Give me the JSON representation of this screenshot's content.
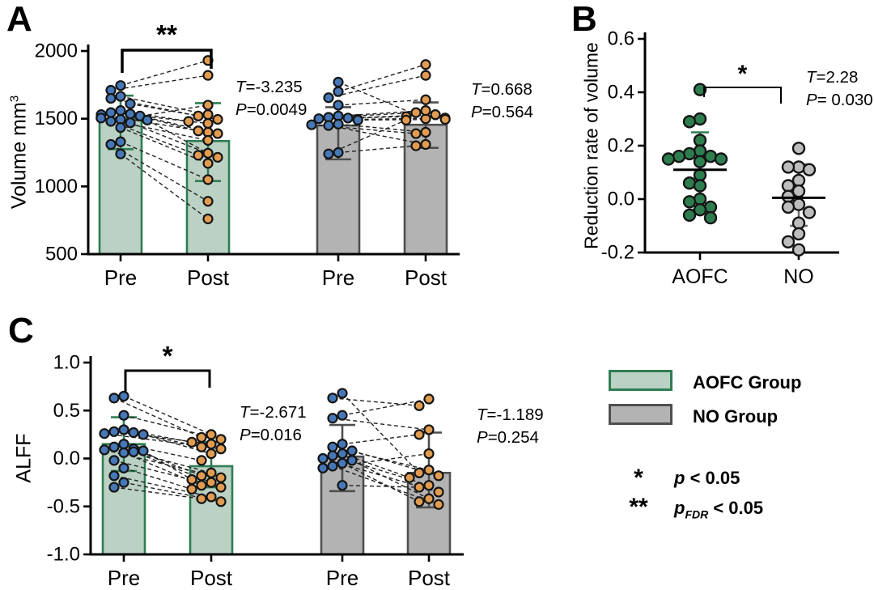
{
  "figure": {
    "panels": [
      {
        "letter": "A"
      },
      {
        "letter": "B"
      },
      {
        "letter": "C"
      }
    ]
  },
  "colors": {
    "pre_dot": "#4678b8",
    "post_dot": "#e29c51",
    "dot_stroke": "#151515",
    "aofc_fill": "#bad1c4",
    "aofc_stroke": "#2e7d53",
    "no_fill": "#b3b3b3",
    "no_stroke": "#4f4f4f",
    "aofc_scatter_dot": "#2e7d4e",
    "no_scatter_dot": "#bdbdbd",
    "no_err": "#6e6e6e",
    "black": "#000000"
  },
  "chart_data": [
    {
      "id": "A",
      "type": "paired-bar-scatter",
      "ylabel": "Volume mm",
      "ylabel_sup": "3",
      "ylim": [
        500,
        2000
      ],
      "ytick_values": [
        500,
        1000,
        1500,
        2000
      ],
      "ytick_labels": [
        "500",
        "1000",
        "1500",
        "2000"
      ],
      "xticklabels": [
        "Pre",
        "Post",
        "Pre",
        "Post"
      ],
      "groups": [
        {
          "name": "AOFC",
          "pre": {
            "mean": 1500,
            "err": [
              1275,
              1670
            ]
          },
          "post": {
            "mean": 1335,
            "err": [
              1040,
              1615
            ]
          },
          "pairs": [
            [
              1745,
              1930
            ],
            [
              1710,
              1820
            ],
            [
              1665,
              1530
            ],
            [
              1650,
              1520
            ],
            [
              1610,
              1495
            ],
            [
              1560,
              1480
            ],
            [
              1545,
              1465
            ],
            [
              1535,
              1410
            ],
            [
              1530,
              1400
            ],
            [
              1520,
              1390
            ],
            [
              1505,
              1340
            ],
            [
              1495,
              1600
            ],
            [
              1490,
              1245
            ],
            [
              1480,
              1230
            ],
            [
              1470,
              1215
            ],
            [
              1435,
              1170
            ],
            [
              1330,
              1050
            ],
            [
              1310,
              890
            ],
            [
              1240,
              760
            ]
          ],
          "sig": "**",
          "stats": {
            "t_label": "T",
            "t_value": "=-3.235",
            "p_label": "P",
            "p_value": "=0.0049"
          }
        },
        {
          "name": "NO",
          "pre": {
            "mean": 1450,
            "err": [
              1200,
              1585
            ]
          },
          "post": {
            "mean": 1455,
            "err": [
              1285,
              1620
            ]
          },
          "pairs": [
            [
              1770,
              1500
            ],
            [
              1700,
              1900
            ],
            [
              1655,
              1820
            ],
            [
              1600,
              1640
            ],
            [
              1520,
              1560
            ],
            [
              1510,
              1545
            ],
            [
              1505,
              1530
            ],
            [
              1500,
              1515
            ],
            [
              1495,
              1505
            ],
            [
              1490,
              1495
            ],
            [
              1460,
              1400
            ],
            [
              1455,
              1390
            ],
            [
              1450,
              1310
            ],
            [
              1250,
              1300
            ],
            [
              1240,
              1490
            ]
          ],
          "sig": null,
          "stats": {
            "t_label": "T",
            "t_value": "=0.668",
            "p_label": "P",
            "p_value": "=0.564"
          }
        }
      ]
    },
    {
      "id": "B",
      "type": "scatter-mean",
      "ylabel": "Reduction rate of volume",
      "ylim": [
        -0.2,
        0.6
      ],
      "ytick_values": [
        -0.2,
        0.0,
        0.2,
        0.4,
        0.6
      ],
      "ytick_labels": [
        "-0.2",
        "0.0",
        "0.2",
        "0.4",
        "0.6"
      ],
      "xticklabels": [
        "AOFC",
        "NO"
      ],
      "sig": "*",
      "stats": {
        "t_label": "T",
        "t_value": "=2.28",
        "p_label": "P",
        "p_value": "= 0.030"
      },
      "groups": [
        {
          "name": "AOFC",
          "mean": 0.11,
          "err": [
            -0.04,
            0.25
          ],
          "values": [
            0.41,
            0.3,
            0.29,
            0.22,
            0.18,
            0.17,
            0.16,
            0.16,
            0.15,
            0.15,
            0.14,
            0.09,
            0.06,
            0.05,
            0.0,
            -0.01,
            -0.03,
            -0.04,
            -0.06,
            -0.07
          ]
        },
        {
          "name": "NO",
          "mean": 0.005,
          "err": [
            -0.1,
            0.13
          ],
          "values": [
            0.19,
            0.12,
            0.12,
            0.11,
            0.07,
            0.05,
            0.03,
            0.01,
            -0.02,
            -0.03,
            -0.05,
            -0.09,
            -0.13,
            -0.16,
            -0.19
          ]
        }
      ]
    },
    {
      "id": "C",
      "type": "paired-bar-scatter",
      "ylabel": "ALFF",
      "ylabel_sup": "",
      "ylim": [
        -1.0,
        1.0
      ],
      "ytick_values": [
        -1.0,
        -0.5,
        0.0,
        0.5,
        1.0
      ],
      "ytick_labels": [
        "-1.0",
        "-0.5",
        "0.0",
        "0.5",
        "1.0"
      ],
      "xticklabels": [
        "Pre",
        "Post",
        "Pre",
        "Post"
      ],
      "groups": [
        {
          "name": "AOFC",
          "pre": {
            "mean": 0.15,
            "err": [
              -0.13,
              0.43
            ]
          },
          "post": {
            "mean": -0.08,
            "err": [
              -0.3,
              0.17
            ]
          },
          "pairs": [
            [
              0.65,
              0.25
            ],
            [
              0.63,
              0.22
            ],
            [
              0.45,
              0.2
            ],
            [
              0.3,
              0.17
            ],
            [
              0.28,
              0.15
            ],
            [
              0.27,
              0.12
            ],
            [
              0.26,
              0.1
            ],
            [
              0.25,
              0.05
            ],
            [
              0.15,
              -0.02
            ],
            [
              0.12,
              -0.15
            ],
            [
              0.1,
              -0.18
            ],
            [
              0.09,
              -0.2
            ],
            [
              0.08,
              -0.22
            ],
            [
              0.07,
              -0.25
            ],
            [
              0.06,
              -0.28
            ],
            [
              -0.02,
              -0.3
            ],
            [
              -0.1,
              -0.32
            ],
            [
              -0.18,
              -0.4
            ],
            [
              -0.25,
              -0.45
            ],
            [
              -0.3,
              -0.42
            ]
          ],
          "sig": "*",
          "stats": {
            "t_label": "T",
            "t_value": "=-2.671",
            "p_label": "P",
            "p_value": "=0.016"
          }
        },
        {
          "name": "NO",
          "pre": {
            "mean": 0.02,
            "err": [
              -0.34,
              0.35
            ]
          },
          "post": {
            "mean": -0.15,
            "err": [
              -0.51,
              0.27
            ]
          },
          "pairs": [
            [
              0.68,
              -0.15
            ],
            [
              0.63,
              0.55
            ],
            [
              0.45,
              0.62
            ],
            [
              0.42,
              0.3
            ],
            [
              0.15,
              0.25
            ],
            [
              0.12,
              -0.12
            ],
            [
              0.08,
              -0.18
            ],
            [
              0.05,
              -0.2
            ],
            [
              0.03,
              -0.28
            ],
            [
              0.0,
              -0.35
            ],
            [
              -0.02,
              -0.42
            ],
            [
              -0.05,
              -0.45
            ],
            [
              -0.08,
              -0.48
            ],
            [
              -0.1,
              0.05
            ],
            [
              -0.28,
              -0.3
            ]
          ],
          "sig": null,
          "stats": {
            "t_label": "T",
            "t_value": "=-1.189",
            "p_label": "P",
            "p_value": "=0.254"
          }
        }
      ]
    }
  ],
  "legend": {
    "items": [
      {
        "label": "AOFC Group",
        "fill": "#bad1c4",
        "stroke": "#2e7d53"
      },
      {
        "label": "NO Group",
        "fill": "#b3b3b3",
        "stroke": "#4f4f4f"
      }
    ],
    "sig_notes": [
      {
        "symbol": "*",
        "p_prefix": "p",
        "p_sub": "",
        "p_rest": " < 0.05"
      },
      {
        "symbol": "**",
        "p_prefix": "p",
        "p_sub": "FDR",
        "p_rest": " < 0.05"
      }
    ]
  }
}
